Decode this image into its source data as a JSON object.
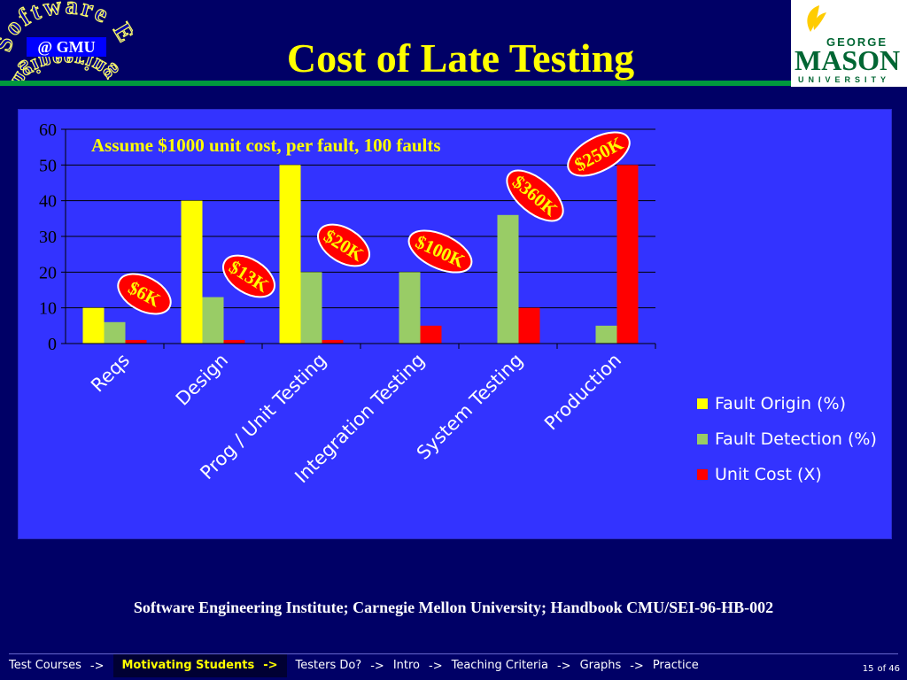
{
  "header": {
    "title": "Cost of Late Testing",
    "logo_left": {
      "arc_top": "Software E",
      "center": "@ GMU",
      "arc_bottom": "ngineering"
    },
    "logo_right": {
      "line1": "GEORGE",
      "line2": "MASON",
      "line3": "UNIVERSITY"
    }
  },
  "colors": {
    "background": "#000066",
    "plot_area": "#3333ff",
    "title": "#ffff00",
    "accent_green": "#009a3d",
    "callout_fill": "#ff0000"
  },
  "chart_data": {
    "type": "bar",
    "categories": [
      "Reqs",
      "Design",
      "Prog / Unit Testing",
      "Integration Testing",
      "System Testing",
      "Production"
    ],
    "series": [
      {
        "name": "Fault Origin (%)",
        "color": "#ffff00",
        "values": [
          10,
          40,
          50,
          0,
          0,
          0
        ]
      },
      {
        "name": "Fault Detection (%)",
        "color": "#99cc66",
        "values": [
          6,
          13,
          20,
          20,
          36,
          5
        ]
      },
      {
        "name": "Unit Cost (X)",
        "color": "#ff0000",
        "values": [
          1,
          1,
          1,
          5,
          10,
          50
        ]
      }
    ],
    "ylim": [
      0,
      60
    ],
    "yticks": [
      "0",
      "10",
      "20",
      "30",
      "40",
      "50",
      "60"
    ],
    "grid": true,
    "legend_position": "right",
    "annotation": "Assume $1000 unit cost, per fault, 100 faults",
    "callouts": [
      {
        "category": "Reqs",
        "label": "$6K"
      },
      {
        "category": "Design",
        "label": "$13K"
      },
      {
        "category": "Prog / Unit Testing",
        "label": "$20K"
      },
      {
        "category": "Integration Testing",
        "label": "$100K"
      },
      {
        "category": "System Testing",
        "label": "$360K"
      },
      {
        "category": "Production",
        "label": "$250K"
      }
    ]
  },
  "citation": "Software Engineering Institute; Carnegie Mellon University; Handbook CMU/SEI-96-HB-002",
  "nav": {
    "items": [
      "Test Courses",
      "Motivating Students",
      "Testers Do?",
      "Intro",
      "Teaching Criteria",
      "Graphs",
      "Practice"
    ],
    "active_index": 1,
    "separator": "->"
  },
  "page": {
    "current": "15",
    "of_label": "of 46"
  }
}
